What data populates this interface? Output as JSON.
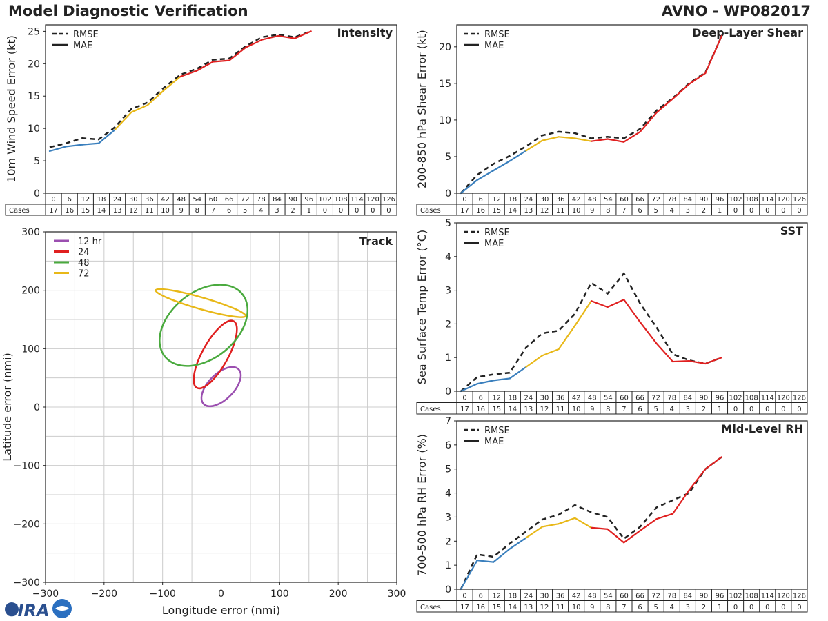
{
  "header": {
    "title": "Model Diagnostic Verification",
    "model_storm": "AVNO - WP082017"
  },
  "logo": {
    "text": "CIRA"
  },
  "colors": {
    "seg1": "#3a7fbd",
    "seg2": "#e8b818",
    "seg3": "#e02020",
    "rmse": "#222222",
    "grid": "#cccccc",
    "track12": "#9b4fb0",
    "track24": "#e02020",
    "track48": "#4aaa3e",
    "track72": "#e8b818"
  },
  "table": {
    "hours": [
      "0",
      "6",
      "12",
      "18",
      "24",
      "30",
      "36",
      "42",
      "48",
      "54",
      "60",
      "66",
      "72",
      "78",
      "84",
      "90",
      "96",
      "102",
      "108",
      "114",
      "120",
      "126"
    ],
    "cases_label": "Cases",
    "cases": [
      "17",
      "16",
      "15",
      "14",
      "13",
      "12",
      "11",
      "10",
      "9",
      "8",
      "7",
      "6",
      "5",
      "4",
      "3",
      "2",
      "1",
      "0",
      "0",
      "0",
      "0",
      "0"
    ]
  },
  "legend": {
    "rmse": "RMSE",
    "mae": "MAE"
  },
  "chart_data": [
    {
      "id": "intensity",
      "type": "line",
      "title": "Intensity",
      "ylabel": "10m Wind Speed Error (kt)",
      "ylim": [
        0,
        26
      ],
      "yticks": [
        0,
        5,
        10,
        15,
        20,
        25
      ],
      "x": [
        0,
        6,
        12,
        18,
        24,
        30,
        36,
        42,
        48,
        54,
        60,
        66,
        72,
        78,
        84,
        90,
        96
      ],
      "series": [
        {
          "name": "RMSE",
          "style": "dashed",
          "values": [
            7.1,
            7.7,
            8.5,
            8.3,
            10.2,
            13.0,
            14.0,
            16.3,
            18.3,
            19.2,
            20.6,
            20.8,
            22.7,
            24.1,
            24.5,
            24.1,
            25.0
          ]
        },
        {
          "name": "MAE",
          "style": "solid",
          "values": [
            6.5,
            7.2,
            7.5,
            7.7,
            9.8,
            12.5,
            13.6,
            15.9,
            18.0,
            18.9,
            20.3,
            20.5,
            22.5,
            23.7,
            24.3,
            23.9,
            25.0
          ]
        }
      ]
    },
    {
      "id": "shear",
      "type": "line",
      "title": "Deep-Layer Shear",
      "ylabel": "200-850 hPa Shear Error (kt)",
      "ylim": [
        0,
        23
      ],
      "yticks": [
        0,
        5,
        10,
        15,
        20
      ],
      "x": [
        0,
        6,
        12,
        18,
        24,
        30,
        36,
        42,
        48,
        54,
        60,
        66,
        72,
        78,
        84,
        90,
        96
      ],
      "series": [
        {
          "name": "RMSE",
          "style": "dashed",
          "values": [
            0.0,
            2.5,
            4.0,
            5.1,
            6.4,
            7.9,
            8.4,
            8.2,
            7.5,
            7.7,
            7.5,
            8.8,
            11.3,
            13.0,
            15.0,
            16.5,
            21.5
          ]
        },
        {
          "name": "MAE",
          "style": "solid",
          "values": [
            0.0,
            1.8,
            3.1,
            4.4,
            5.8,
            7.2,
            7.7,
            7.5,
            7.1,
            7.4,
            7.0,
            8.4,
            11.0,
            12.9,
            14.9,
            16.4,
            21.5
          ]
        }
      ]
    },
    {
      "id": "sst",
      "type": "line",
      "title": "SST",
      "ylabel": "Sea Surface Temp Error (°C)",
      "ylim": [
        0,
        5
      ],
      "yticks": [
        0,
        1,
        2,
        3,
        4,
        5
      ],
      "x": [
        0,
        6,
        12,
        18,
        24,
        30,
        36,
        42,
        48,
        54,
        60,
        66,
        72,
        78,
        84,
        90,
        96
      ],
      "series": [
        {
          "name": "RMSE",
          "style": "dashed",
          "values": [
            0.0,
            0.42,
            0.5,
            0.55,
            1.3,
            1.72,
            1.8,
            2.3,
            3.22,
            2.9,
            3.5,
            2.6,
            1.9,
            1.1,
            0.92,
            0.82,
            1.0
          ]
        },
        {
          "name": "MAE",
          "style": "solid",
          "values": [
            0.0,
            0.22,
            0.32,
            0.38,
            0.72,
            1.06,
            1.25,
            1.95,
            2.68,
            2.5,
            2.72,
            2.05,
            1.42,
            0.88,
            0.9,
            0.82,
            1.0
          ]
        }
      ]
    },
    {
      "id": "rh",
      "type": "line",
      "title": "Mid-Level RH",
      "ylabel": "700-500 hPa RH Error (%)",
      "ylim": [
        0,
        7
      ],
      "yticks": [
        0,
        1,
        2,
        3,
        4,
        5,
        6,
        7
      ],
      "x": [
        0,
        6,
        12,
        18,
        24,
        30,
        36,
        42,
        48,
        54,
        60,
        66,
        72,
        78,
        84,
        90,
        96
      ],
      "series": [
        {
          "name": "RMSE",
          "style": "dashed",
          "values": [
            0.0,
            1.45,
            1.35,
            1.9,
            2.4,
            2.9,
            3.1,
            3.5,
            3.2,
            3.0,
            2.1,
            2.6,
            3.4,
            3.7,
            4.0,
            5.0,
            5.5
          ]
        },
        {
          "name": "MAE",
          "style": "solid",
          "values": [
            0.0,
            1.2,
            1.13,
            1.68,
            2.14,
            2.6,
            2.72,
            2.96,
            2.56,
            2.5,
            1.94,
            2.44,
            2.92,
            3.14,
            4.12,
            5.0,
            5.5
          ]
        }
      ]
    },
    {
      "id": "track",
      "type": "scatter",
      "title": "Track",
      "xlabel": "Longitude error (nmi)",
      "ylabel": "Latitude error (nmi)",
      "xlim": [
        -300,
        300
      ],
      "ylim": [
        -300,
        300
      ],
      "xticks": [
        -300,
        -200,
        -100,
        0,
        100,
        200,
        300
      ],
      "yticks": [
        -300,
        -200,
        -100,
        0,
        100,
        200,
        300
      ],
      "ellipses": [
        {
          "name": "12 hr",
          "cx": 0,
          "cy": 35,
          "rx": 42,
          "ry": 22,
          "angle": -45
        },
        {
          "name": "24",
          "cx": -10,
          "cy": 90,
          "rx": 65,
          "ry": 22,
          "angle": -61
        },
        {
          "name": "48",
          "cx": -30,
          "cy": 140,
          "rx": 85,
          "ry": 57,
          "angle": -39
        },
        {
          "name": "72",
          "cx": -35,
          "cy": 178,
          "rx": 80,
          "ry": 10,
          "angle": 16
        }
      ]
    }
  ]
}
